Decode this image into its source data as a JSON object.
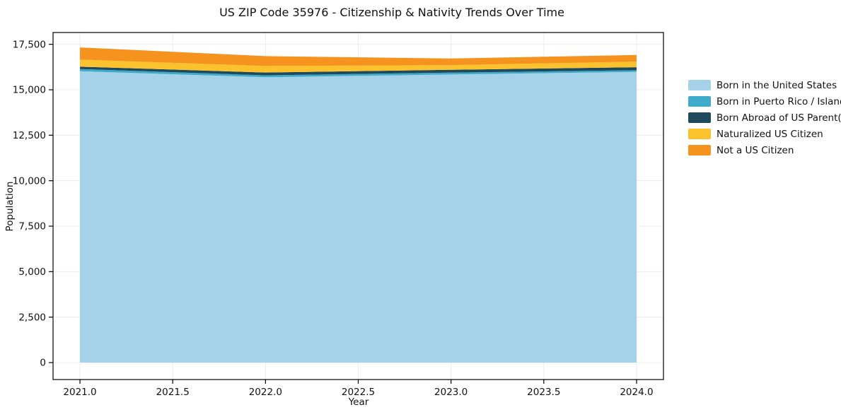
{
  "chart_data": {
    "type": "area",
    "stacked": true,
    "title": "US ZIP Code 35976 - Citizenship & Nativity Trends Over Time",
    "xlabel": "Year",
    "ylabel": "Population",
    "x": [
      2021,
      2022,
      2023,
      2024
    ],
    "series": [
      {
        "name": "Born in the United States",
        "color": "#A5D2E8",
        "values": [
          16020,
          15690,
          15840,
          15985
        ]
      },
      {
        "name": "Born in Puerto Rico / Islands",
        "color": "#3DABC9",
        "values": [
          120,
          105,
          105,
          90
        ]
      },
      {
        "name": "Born Abroad of US Parent(s)",
        "color": "#1F4A5E",
        "values": [
          130,
          155,
          155,
          165
        ]
      },
      {
        "name": "Naturalized US Citizen",
        "color": "#FCC22D",
        "values": [
          390,
          360,
          255,
          310
        ]
      },
      {
        "name": "Not a US Citizen",
        "color": "#F6921E",
        "values": [
          670,
          540,
          365,
          365
        ]
      }
    ],
    "xticks": [
      2021.0,
      2021.5,
      2022.0,
      2022.5,
      2023.0,
      2023.5,
      2024.0
    ],
    "xtick_labels": [
      "2021.0",
      "2021.5",
      "2022.0",
      "2022.5",
      "2023.0",
      "2023.5",
      "2024.0"
    ],
    "yticks": [
      0,
      2500,
      5000,
      7500,
      10000,
      12500,
      15000,
      17500
    ],
    "ytick_labels": [
      "0",
      "2,500",
      "5,000",
      "7,500",
      "10,000",
      "12,500",
      "15,000",
      "17,500"
    ],
    "xlim": [
      2020.855,
      2024.145
    ],
    "ylim": [
      -933,
      18149
    ],
    "grid": true,
    "grid_color": "#ececec",
    "axis_color": "#000000",
    "legend_position": "right"
  }
}
